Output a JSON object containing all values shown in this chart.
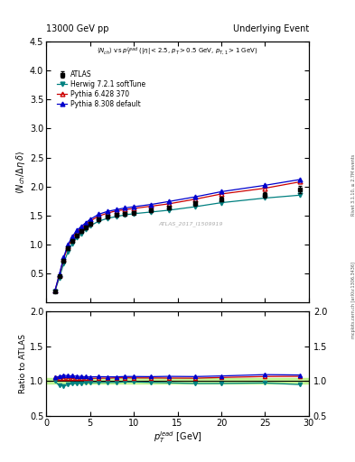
{
  "title_left": "13000 GeV pp",
  "title_right": "Underlying Event",
  "plot_label": "ATLAS_2017_I1509919",
  "xlim": [
    0,
    30
  ],
  "ylim_main": [
    0,
    4.5
  ],
  "ylim_ratio": [
    0.5,
    2.0
  ],
  "yticks_main": [
    0.5,
    1.0,
    1.5,
    2.0,
    2.5,
    3.0,
    3.5,
    4.0,
    4.5
  ],
  "yticks_ratio": [
    0.5,
    1.0,
    1.5,
    2.0
  ],
  "xticks": [
    0,
    5,
    10,
    15,
    20,
    25,
    30
  ],
  "atlas_x": [
    1.0,
    1.5,
    2.0,
    2.5,
    3.0,
    3.5,
    4.0,
    4.5,
    5.0,
    6.0,
    7.0,
    8.0,
    9.0,
    10.0,
    12.0,
    14.0,
    17.0,
    20.0,
    25.0,
    29.0
  ],
  "atlas_y": [
    0.19,
    0.45,
    0.72,
    0.93,
    1.06,
    1.16,
    1.23,
    1.29,
    1.35,
    1.43,
    1.48,
    1.51,
    1.53,
    1.55,
    1.59,
    1.63,
    1.71,
    1.78,
    1.85,
    1.95
  ],
  "atlas_yerr": [
    0.01,
    0.02,
    0.03,
    0.03,
    0.03,
    0.03,
    0.03,
    0.03,
    0.03,
    0.03,
    0.03,
    0.03,
    0.03,
    0.03,
    0.03,
    0.03,
    0.04,
    0.04,
    0.05,
    0.06
  ],
  "herwig_x": [
    1.0,
    1.5,
    2.0,
    2.5,
    3.0,
    3.5,
    4.0,
    4.5,
    5.0,
    6.0,
    7.0,
    8.0,
    9.0,
    10.0,
    12.0,
    14.0,
    17.0,
    20.0,
    25.0,
    29.0
  ],
  "herwig_y": [
    0.19,
    0.42,
    0.67,
    0.88,
    1.02,
    1.12,
    1.19,
    1.26,
    1.32,
    1.4,
    1.45,
    1.48,
    1.51,
    1.53,
    1.56,
    1.59,
    1.65,
    1.72,
    1.8,
    1.85
  ],
  "herwig_color": "#008080",
  "pythia6_x": [
    1.0,
    1.5,
    2.0,
    2.5,
    3.0,
    3.5,
    4.0,
    4.5,
    5.0,
    6.0,
    7.0,
    8.0,
    9.0,
    10.0,
    12.0,
    14.0,
    17.0,
    20.0,
    25.0,
    29.0
  ],
  "pythia6_y": [
    0.2,
    0.47,
    0.75,
    0.97,
    1.1,
    1.21,
    1.28,
    1.34,
    1.4,
    1.49,
    1.54,
    1.58,
    1.6,
    1.62,
    1.66,
    1.7,
    1.78,
    1.87,
    1.97,
    2.08
  ],
  "pythia6_color": "#cc0000",
  "pythia8_x": [
    1.0,
    1.5,
    2.0,
    2.5,
    3.0,
    3.5,
    4.0,
    4.5,
    5.0,
    6.0,
    7.0,
    8.0,
    9.0,
    10.0,
    12.0,
    14.0,
    17.0,
    20.0,
    25.0,
    29.0
  ],
  "pythia8_y": [
    0.2,
    0.48,
    0.78,
    1.0,
    1.14,
    1.24,
    1.31,
    1.37,
    1.43,
    1.52,
    1.57,
    1.6,
    1.63,
    1.65,
    1.69,
    1.74,
    1.82,
    1.91,
    2.02,
    2.12
  ],
  "pythia8_color": "#0000cc",
  "atlas_band_yellow": "#ffff99",
  "atlas_band_green": "#90ee90",
  "atlas_uncertainty_ratio": 0.04,
  "herwig_ratio_y": [
    1.0,
    0.933,
    0.93,
    0.946,
    0.962,
    0.966,
    0.967,
    0.977,
    0.977,
    0.979,
    0.98,
    0.98,
    0.987,
    0.987,
    0.981,
    0.975,
    0.965,
    0.966,
    0.973,
    0.949
  ],
  "pythia6_ratio_y": [
    1.05,
    1.044,
    1.042,
    1.043,
    1.038,
    1.043,
    1.041,
    1.039,
    1.037,
    1.042,
    1.041,
    1.046,
    1.046,
    1.045,
    1.044,
    1.043,
    1.041,
    1.051,
    1.065,
    1.067
  ],
  "pythia8_ratio_y": [
    1.05,
    1.067,
    1.083,
    1.075,
    1.075,
    1.069,
    1.065,
    1.062,
    1.059,
    1.063,
    1.061,
    1.06,
    1.065,
    1.065,
    1.063,
    1.067,
    1.064,
    1.073,
    1.092,
    1.087
  ]
}
